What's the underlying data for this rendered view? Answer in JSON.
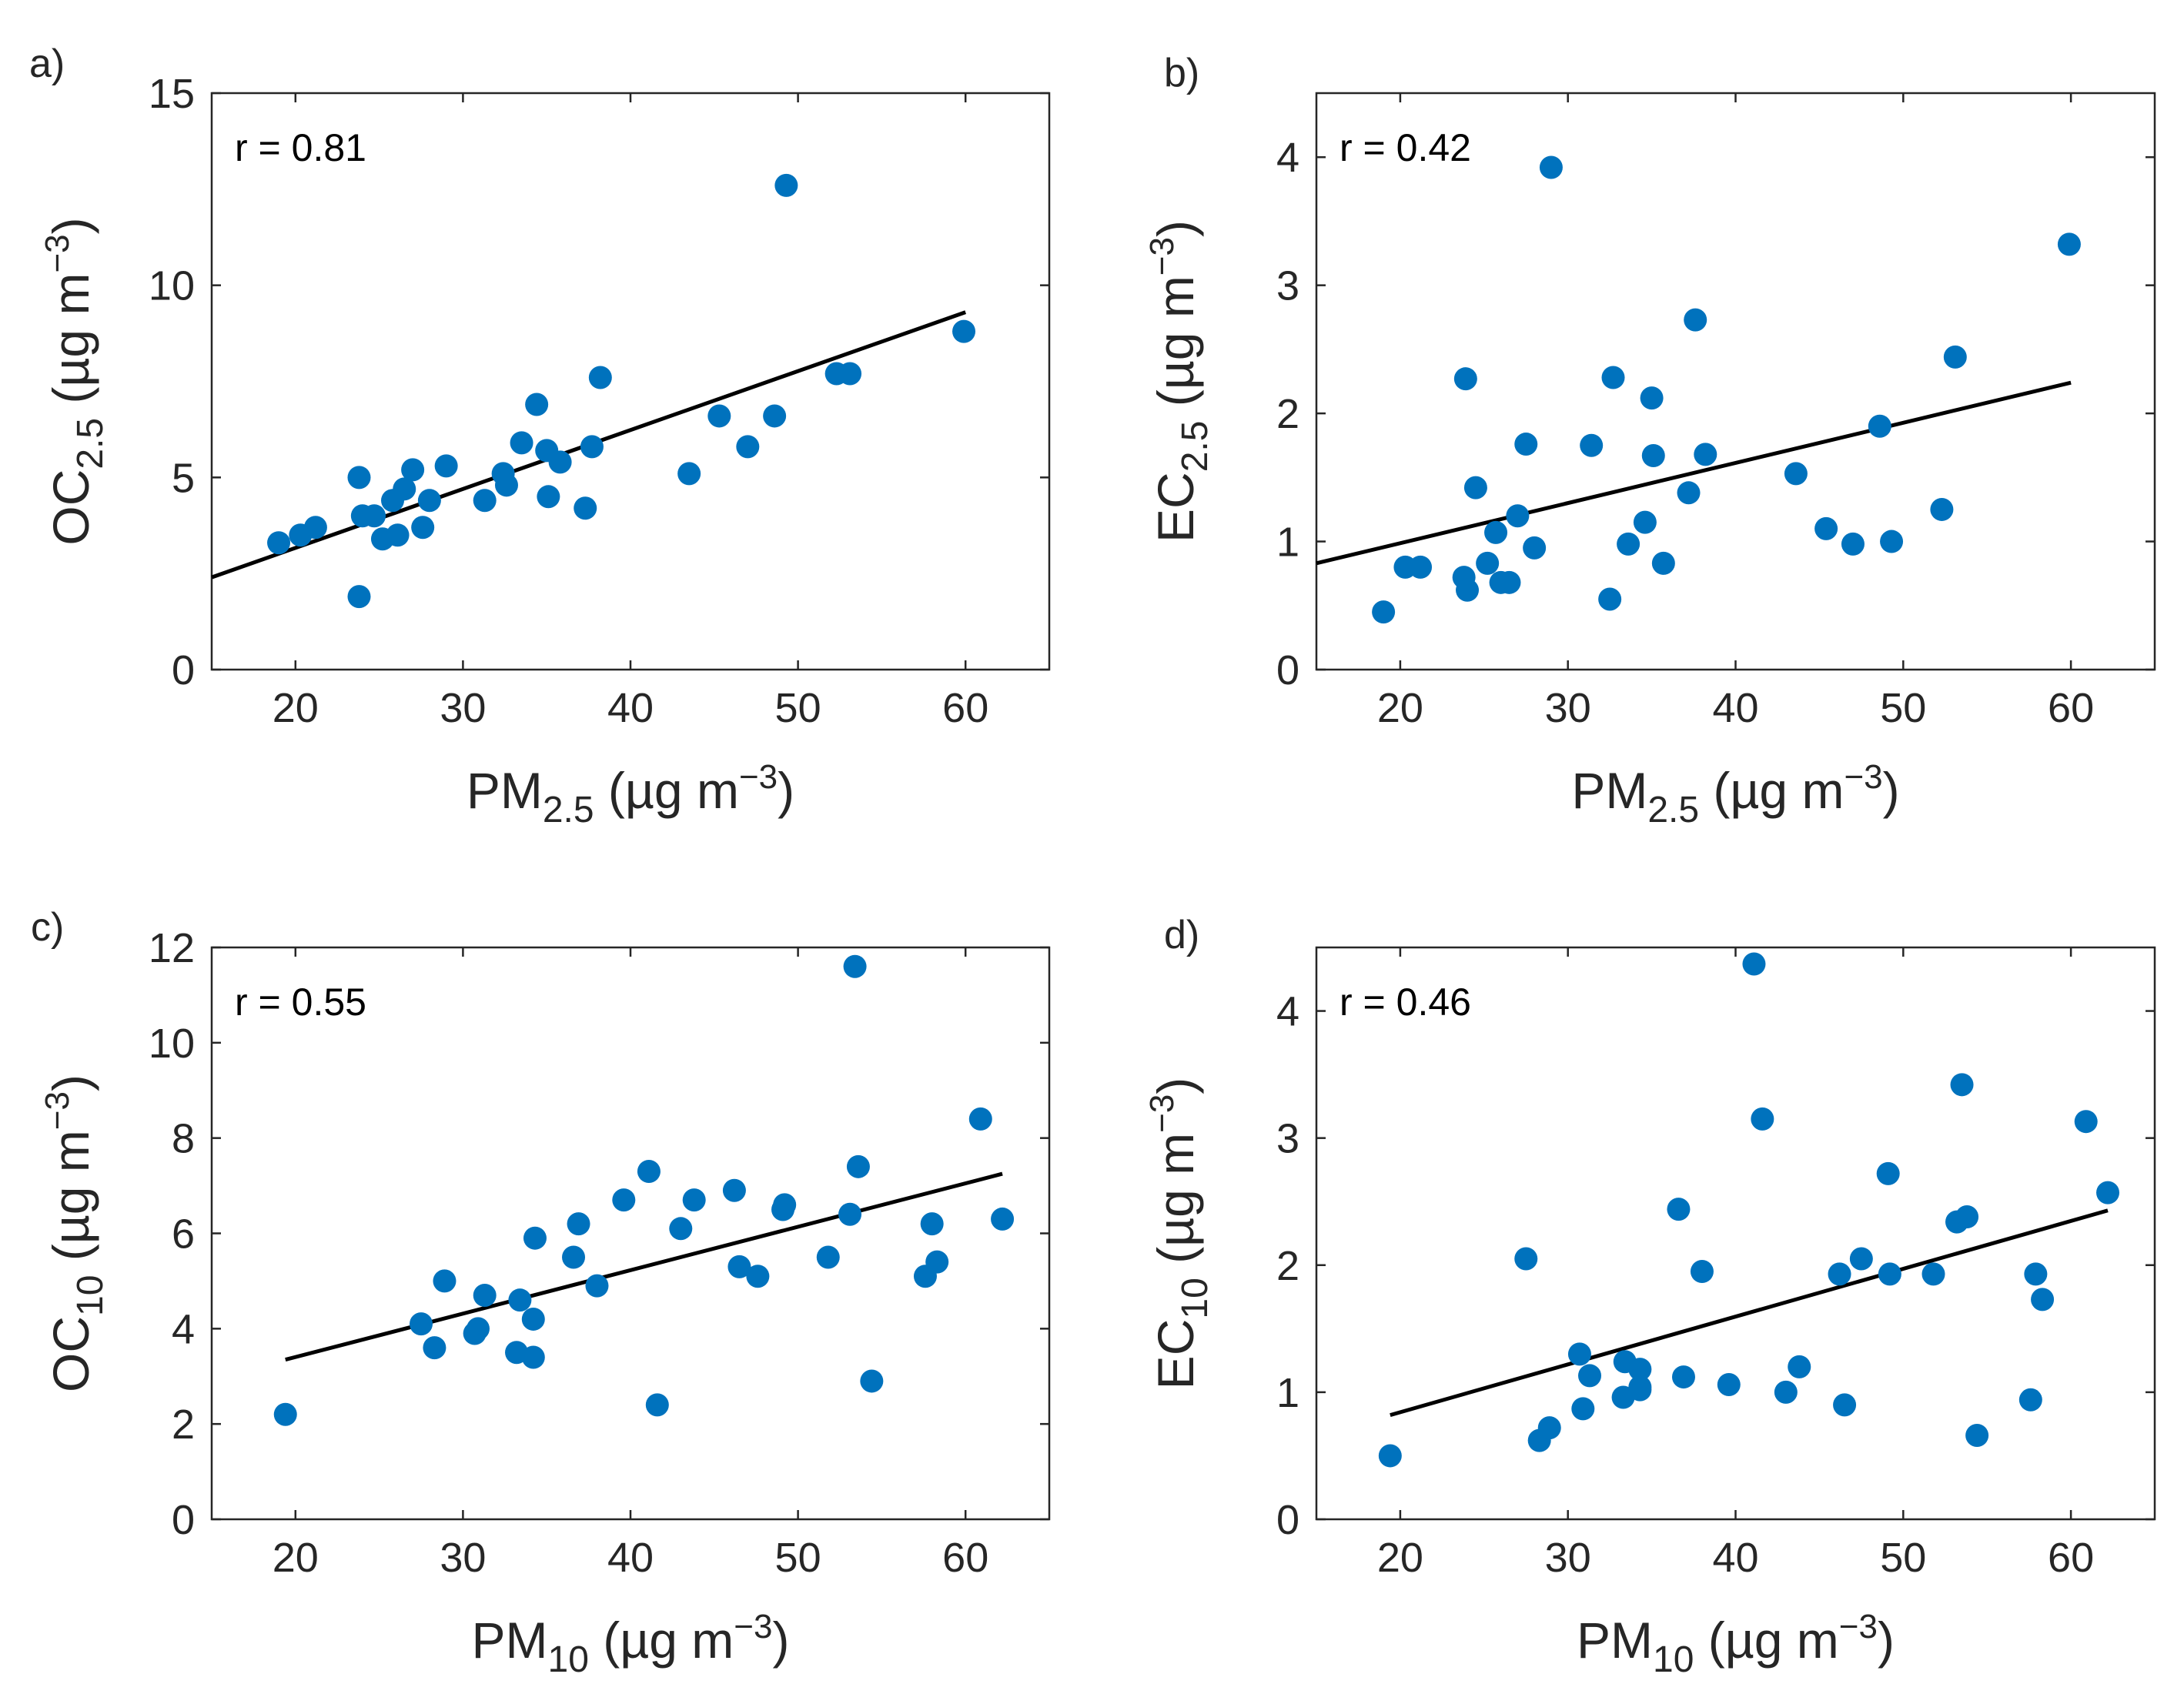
{
  "chart_data": [
    {
      "panel": "a)",
      "type": "scatter",
      "annotation": "r = 0.81",
      "xlabel": {
        "base": "PM",
        "sub": "2.5",
        "unit_pre": " (µg m",
        "sup": "−3",
        "unit_post": ")"
      },
      "ylabel": {
        "base": "OC",
        "sub": "2.5",
        "unit_pre": " (µg m",
        "sup": "−3",
        "unit_post": ")"
      },
      "xlim": [
        15,
        65
      ],
      "ylim": [
        0,
        15
      ],
      "xticks": [
        20,
        30,
        40,
        50,
        60
      ],
      "yticks": [
        0,
        5,
        10,
        15
      ],
      "point_color": "#0072BD",
      "fit_line": {
        "x": [
          15,
          60
        ],
        "y": [
          2.4,
          9.3
        ]
      },
      "x": [
        19,
        20.3,
        21.2,
        23.8,
        23.8,
        24,
        24.7,
        25.2,
        25.8,
        26.1,
        26.5,
        27,
        27.6,
        28,
        29,
        31.3,
        32.4,
        32.6,
        33.5,
        34.4,
        35,
        35.1,
        35.8,
        37.3,
        37.7,
        38.2,
        43.5,
        45.3,
        47,
        48.6,
        49.3,
        52.3,
        53.1,
        59.9
      ],
      "y": [
        3.3,
        3.5,
        3.7,
        1.9,
        5.0,
        4.0,
        4.0,
        3.4,
        4.4,
        3.5,
        4.7,
        5.2,
        3.7,
        4.4,
        5.3,
        4.4,
        5.1,
        4.8,
        5.9,
        6.9,
        5.7,
        4.5,
        5.4,
        4.2,
        5.8,
        7.6,
        5.1,
        6.6,
        5.8,
        6.6,
        12.6,
        7.7,
        7.7,
        8.8
      ]
    },
    {
      "panel": "b)",
      "type": "scatter",
      "annotation": "r = 0.42",
      "xlabel": {
        "base": "PM",
        "sub": "2.5",
        "unit_pre": " (µg m",
        "sup": "−3",
        "unit_post": ")"
      },
      "ylabel": {
        "base": "EC",
        "sub": "2.5",
        "unit_pre": " (µg m",
        "sup": "−3",
        "unit_post": ")"
      },
      "xlim": [
        15,
        65
      ],
      "ylim": [
        0,
        4.5
      ],
      "xticks": [
        20,
        30,
        40,
        50,
        60
      ],
      "yticks": [
        0,
        1,
        2,
        3,
        4
      ],
      "point_color": "#0072BD",
      "fit_line": {
        "x": [
          15,
          60
        ],
        "y": [
          0.83,
          2.24
        ]
      },
      "x": [
        19,
        20.3,
        21.2,
        23.8,
        23.9,
        24,
        24.5,
        25.2,
        25.7,
        26,
        26.5,
        27,
        27.5,
        28,
        29,
        31.4,
        32.5,
        32.7,
        33.6,
        34.6,
        35,
        35.1,
        35.7,
        37.2,
        37.6,
        38.2,
        43.6,
        45.4,
        47,
        48.6,
        49.3,
        52.3,
        53.1,
        59.9
      ],
      "y": [
        0.45,
        0.8,
        0.8,
        0.72,
        2.27,
        0.62,
        1.42,
        0.83,
        1.07,
        0.68,
        0.68,
        1.2,
        1.76,
        0.95,
        3.92,
        1.75,
        0.55,
        2.28,
        0.98,
        1.15,
        2.12,
        1.67,
        0.83,
        1.38,
        2.73,
        1.68,
        1.53,
        1.1,
        0.98,
        1.9,
        1.0,
        1.25,
        2.44,
        3.32
      ]
    },
    {
      "panel": "c)",
      "type": "scatter",
      "annotation": "r = 0.55",
      "xlabel": {
        "base": "PM",
        "sub": "10",
        "unit_pre": " (µg m",
        "sup": "−3",
        "unit_post": ")"
      },
      "ylabel": {
        "base": "OC",
        "sub": "10",
        "unit_pre": " (µg m",
        "sup": "−3",
        "unit_post": ")"
      },
      "xlim": [
        15,
        65
      ],
      "ylim": [
        0,
        12
      ],
      "xticks": [
        20,
        30,
        40,
        50,
        60
      ],
      "yticks": [
        0,
        2,
        4,
        6,
        8,
        10,
        12
      ],
      "point_color": "#0072BD",
      "fit_line": {
        "x": [
          19.4,
          62.2
        ],
        "y": [
          3.35,
          7.25
        ]
      },
      "x": [
        19.4,
        27.5,
        28.3,
        28.9,
        30.7,
        30.9,
        31.3,
        33.2,
        33.4,
        34.2,
        34.2,
        34.3,
        36.6,
        36.9,
        38,
        39.6,
        41.1,
        41.6,
        43,
        43.8,
        46.2,
        46.5,
        47.6,
        49.1,
        49.2,
        51.8,
        53.1,
        53.4,
        53.6,
        54.4,
        57.6,
        58,
        58.3,
        60.9,
        62.2
      ],
      "y": [
        2.2,
        4.1,
        3.6,
        5.0,
        3.9,
        4.0,
        4.7,
        3.5,
        4.6,
        3.4,
        4.2,
        5.9,
        5.5,
        6.2,
        4.9,
        6.7,
        7.3,
        2.4,
        6.1,
        6.7,
        6.9,
        5.3,
        5.1,
        6.5,
        6.6,
        5.5,
        6.4,
        11.6,
        7.4,
        2.9,
        5.1,
        6.2,
        5.4,
        8.4,
        6.3
      ]
    },
    {
      "panel": "d)",
      "type": "scatter",
      "annotation": "r = 0.46",
      "xlabel": {
        "base": "PM",
        "sub": "10",
        "unit_pre": " (µg m",
        "sup": "−3",
        "unit_post": ")"
      },
      "ylabel": {
        "base": "EC",
        "sub": "10",
        "unit_pre": " (µg m",
        "sup": "−3",
        "unit_post": ")"
      },
      "xlim": [
        15,
        65
      ],
      "ylim": [
        0,
        4.5
      ],
      "xticks": [
        20,
        30,
        40,
        50,
        60
      ],
      "yticks": [
        0,
        1,
        2,
        3,
        4
      ],
      "point_color": "#0072BD",
      "fit_line": {
        "x": [
          19.4,
          62.2
        ],
        "y": [
          0.82,
          2.43
        ]
      },
      "x": [
        19.4,
        27.5,
        28.3,
        28.9,
        30.7,
        30.9,
        31.3,
        33.3,
        33.4,
        34.3,
        34.3,
        34.3,
        36.6,
        36.9,
        38,
        39.6,
        41.1,
        41.6,
        43,
        43.8,
        46.2,
        46.5,
        47.5,
        49.1,
        49.2,
        51.8,
        53.2,
        53.5,
        53.8,
        54.4,
        57.6,
        57.9,
        58.3,
        60.9,
        62.2
      ],
      "y": [
        0.5,
        2.05,
        0.62,
        0.72,
        1.3,
        0.87,
        1.13,
        0.96,
        1.24,
        1.04,
        1.18,
        1.02,
        2.44,
        1.12,
        1.95,
        1.06,
        4.37,
        3.15,
        1.0,
        1.2,
        1.93,
        0.9,
        2.05,
        2.72,
        1.93,
        1.93,
        2.34,
        3.42,
        2.38,
        0.66,
        0.94,
        1.93,
        1.73,
        3.13,
        2.57
      ]
    }
  ]
}
